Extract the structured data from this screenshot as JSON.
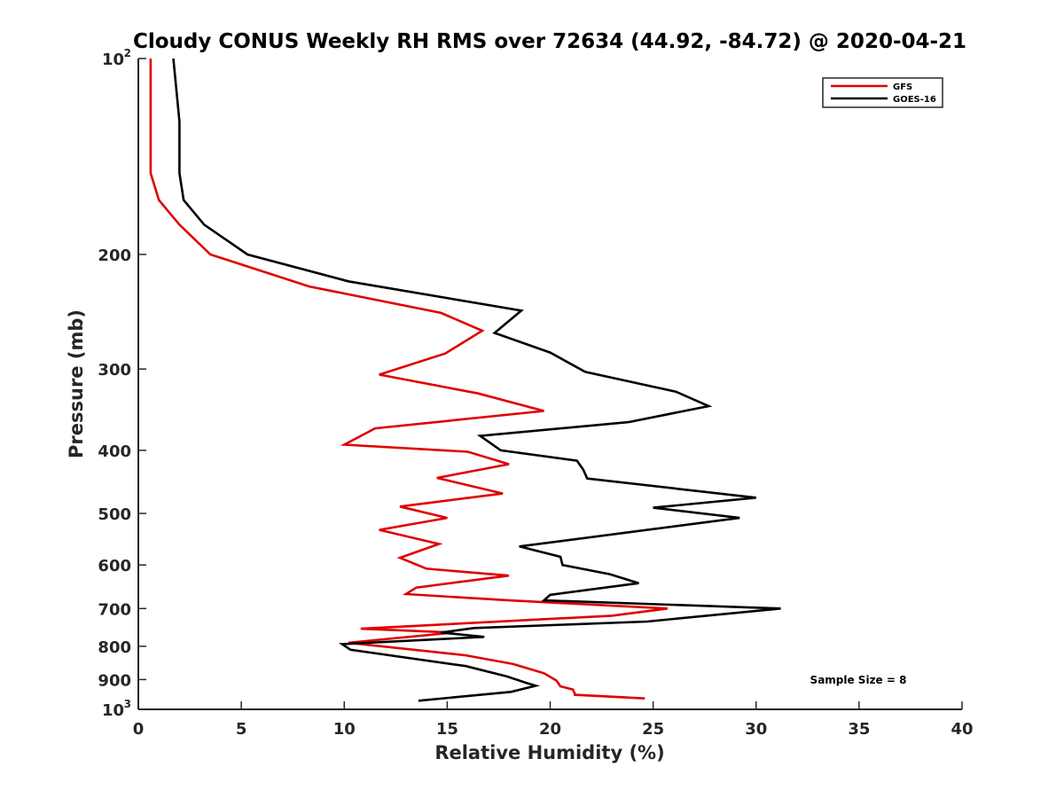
{
  "chart_data": {
    "type": "line",
    "title": "Cloudy CONUS Weekly RH RMS over 72634 (44.92, -84.72) @ 2020-04-21",
    "xlabel": "Relative Humidity (%)",
    "ylabel": "Pressure (mb)",
    "xlim": [
      0,
      40
    ],
    "ylim": [
      100,
      1000
    ],
    "y_scale": "log",
    "y_reversed": true,
    "grid": false,
    "legend_position": "top-right",
    "x_ticks": [
      "0",
      "5",
      "10",
      "15",
      "20",
      "25",
      "30",
      "35",
      "40"
    ],
    "y_ticks": [
      {
        "value": 100,
        "base": "10",
        "exp": "2"
      },
      {
        "value": 200,
        "base": "200",
        "exp": ""
      },
      {
        "value": 300,
        "base": "300",
        "exp": ""
      },
      {
        "value": 400,
        "base": "400",
        "exp": ""
      },
      {
        "value": 500,
        "base": "500",
        "exp": ""
      },
      {
        "value": 600,
        "base": "600",
        "exp": ""
      },
      {
        "value": 700,
        "base": "700",
        "exp": ""
      },
      {
        "value": 800,
        "base": "800",
        "exp": ""
      },
      {
        "value": 900,
        "base": "900",
        "exp": ""
      },
      {
        "value": 1000,
        "base": "10",
        "exp": "3"
      }
    ],
    "annotation": "Sample Size = 8",
    "series": [
      {
        "name": "GFS",
        "color": "#e00000",
        "points": [
          [
            0.6,
            100
          ],
          [
            0.6,
            125
          ],
          [
            0.6,
            150
          ],
          [
            1.0,
            165
          ],
          [
            2.0,
            180
          ],
          [
            3.5,
            200
          ],
          [
            8.3,
            224
          ],
          [
            14.7,
            246
          ],
          [
            16.7,
            262
          ],
          [
            14.9,
            284
          ],
          [
            11.7,
            306
          ],
          [
            16.5,
            327
          ],
          [
            19.7,
            348
          ],
          [
            11.5,
            370
          ],
          [
            10.0,
            392
          ],
          [
            16.0,
            402
          ],
          [
            18.0,
            420
          ],
          [
            14.5,
            441
          ],
          [
            17.7,
            466
          ],
          [
            12.7,
            488
          ],
          [
            15.0,
            508
          ],
          [
            11.7,
            530
          ],
          [
            14.6,
            557
          ],
          [
            12.7,
            585
          ],
          [
            14.0,
            608
          ],
          [
            18.0,
            623
          ],
          [
            13.5,
            650
          ],
          [
            13.0,
            665
          ],
          [
            18.0,
            680
          ],
          [
            25.7,
            700
          ],
          [
            23.0,
            718
          ],
          [
            10.8,
            752
          ],
          [
            15.3,
            762
          ],
          [
            10.2,
            790
          ],
          [
            15.9,
            826
          ],
          [
            18.2,
            852
          ],
          [
            19.7,
            880
          ],
          [
            20.3,
            903
          ],
          [
            20.5,
            922
          ],
          [
            21.1,
            932
          ],
          [
            21.2,
            947
          ],
          [
            21.2,
            950
          ],
          [
            24.6,
            962
          ]
        ]
      },
      {
        "name": "GOES-16",
        "color": "#000000",
        "points": [
          [
            1.7,
            100
          ],
          [
            2.0,
            125
          ],
          [
            2.0,
            150
          ],
          [
            2.2,
            165
          ],
          [
            3.2,
            180
          ],
          [
            5.3,
            200
          ],
          [
            10.2,
            220
          ],
          [
            18.6,
            244
          ],
          [
            17.3,
            264
          ],
          [
            20.0,
            283
          ],
          [
            21.7,
            303
          ],
          [
            26.1,
            325
          ],
          [
            27.7,
            342
          ],
          [
            23.8,
            362
          ],
          [
            16.6,
            380
          ],
          [
            17.6,
            400
          ],
          [
            21.3,
            415
          ],
          [
            21.6,
            428
          ],
          [
            21.8,
            442
          ],
          [
            30.0,
            473
          ],
          [
            25.0,
            490
          ],
          [
            29.2,
            508
          ],
          [
            18.5,
            562
          ],
          [
            20.5,
            583
          ],
          [
            20.6,
            600
          ],
          [
            22.9,
            620
          ],
          [
            24.3,
            640
          ],
          [
            20.0,
            667
          ],
          [
            19.7,
            680
          ],
          [
            31.2,
            700
          ],
          [
            24.7,
            733
          ],
          [
            16.3,
            750
          ],
          [
            14.7,
            762
          ],
          [
            16.8,
            774
          ],
          [
            9.9,
            794
          ],
          [
            10.3,
            810
          ],
          [
            15.9,
            858
          ],
          [
            17.9,
            890
          ],
          [
            18.8,
            910
          ],
          [
            19.3,
            920
          ],
          [
            18.1,
            940
          ],
          [
            13.6,
            970
          ]
        ]
      }
    ]
  }
}
